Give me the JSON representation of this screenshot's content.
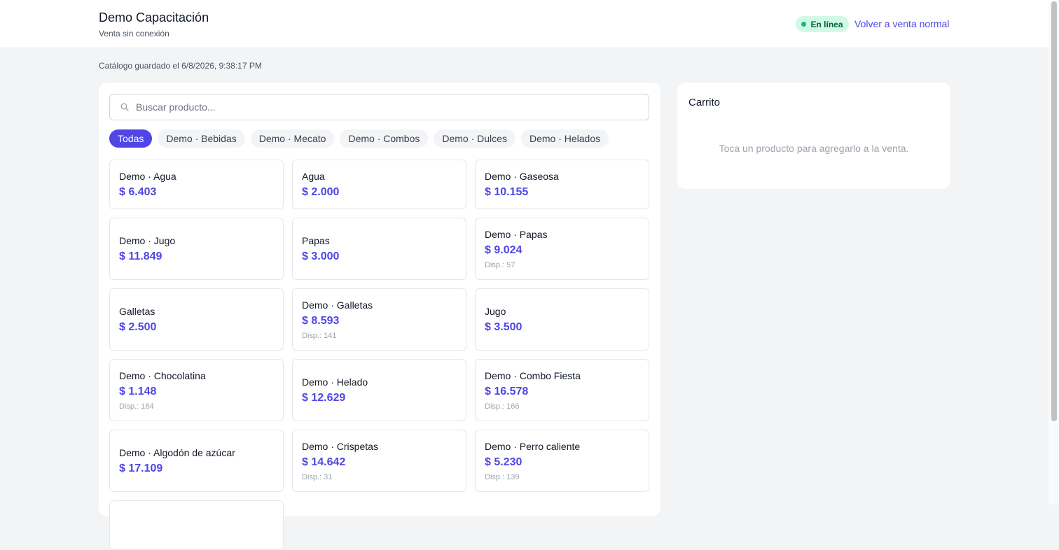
{
  "header": {
    "title": "Demo Capacitación",
    "subtitle": "Venta sin conexión",
    "status_badge": "En línea",
    "back_link": "Volver a venta normal"
  },
  "saved_note": "Catálogo guardado el 6/8/2026, 9:38:17 PM",
  "search": {
    "placeholder": "Buscar producto..."
  },
  "categories": [
    {
      "label": "Todas",
      "active": true
    },
    {
      "label": "Demo · Bebidas",
      "active": false
    },
    {
      "label": "Demo · Mecato",
      "active": false
    },
    {
      "label": "Demo · Combos",
      "active": false
    },
    {
      "label": "Demo · Dulces",
      "active": false
    },
    {
      "label": "Demo · Helados",
      "active": false
    }
  ],
  "products": [
    {
      "name": "Demo · Agua",
      "price": "$ 6.403",
      "stock": ""
    },
    {
      "name": "Agua",
      "price": "$ 2.000",
      "stock": ""
    },
    {
      "name": "Demo · Gaseosa",
      "price": "$ 10.155",
      "stock": ""
    },
    {
      "name": "Demo · Jugo",
      "price": "$ 11.849",
      "stock": ""
    },
    {
      "name": "Papas",
      "price": "$ 3.000",
      "stock": ""
    },
    {
      "name": "Demo · Papas",
      "price": "$ 9.024",
      "stock": "Disp.: 57"
    },
    {
      "name": "Galletas",
      "price": "$ 2.500",
      "stock": ""
    },
    {
      "name": "Demo · Galletas",
      "price": "$ 8.593",
      "stock": "Disp.: 141"
    },
    {
      "name": "Jugo",
      "price": "$ 3.500",
      "stock": ""
    },
    {
      "name": "Demo · Chocolatina",
      "price": "$ 1.148",
      "stock": "Disp.: 184"
    },
    {
      "name": "Demo · Helado",
      "price": "$ 12.629",
      "stock": ""
    },
    {
      "name": "Demo · Combo Fiesta",
      "price": "$ 16.578",
      "stock": "Disp.: 166"
    },
    {
      "name": "Demo · Algodón de azúcar",
      "price": "$ 17.109",
      "stock": ""
    },
    {
      "name": "Demo · Crispetas",
      "price": "$ 14.642",
      "stock": "Disp.: 31"
    },
    {
      "name": "Demo · Perro caliente",
      "price": "$ 5.230",
      "stock": "Disp.: 139"
    }
  ],
  "cart": {
    "title": "Carrito",
    "empty_message": "Toca un producto para agregarlo a la venta."
  },
  "colors": {
    "accent": "#4f46e5",
    "online_bg": "#d1fae5",
    "online_dot": "#10b981"
  }
}
